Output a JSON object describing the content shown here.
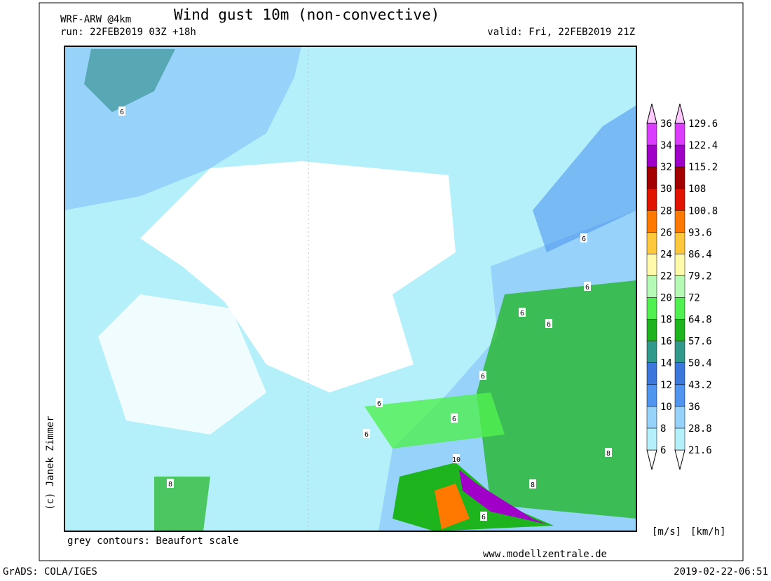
{
  "header": {
    "model": "WRF-ARW @4km",
    "title": "Wind gust 10m (non-convective)",
    "run": "run: 22FEB2019 03Z +18h",
    "valid": "valid: Fri, 22FEB2019 21Z"
  },
  "legend": {
    "ms_labels": [
      "6",
      "8",
      "10",
      "12",
      "14",
      "16",
      "18",
      "20",
      "22",
      "24",
      "26",
      "28",
      "30",
      "32",
      "34",
      "36"
    ],
    "kmh_labels": [
      "21.6",
      "28.8",
      "36",
      "43.2",
      "50.4",
      "57.6",
      "64.8",
      "72",
      "79.2",
      "86.4",
      "93.6",
      "100.8",
      "108",
      "115.2",
      "122.4",
      "129.6"
    ],
    "colors": [
      "#ffffff",
      "#b4f0fa",
      "#96d2fa",
      "#5096f0",
      "#3c78dc",
      "#329a8c",
      "#1eb41e",
      "#50f050",
      "#b4fab4",
      "#fffaaa",
      "#ffc83c",
      "#ff7800",
      "#e11400",
      "#a50000",
      "#a000c8",
      "#dc3cff",
      "#ffc8ff"
    ],
    "unit_ms": "[m/s]",
    "unit_kmh": "[km/h]"
  },
  "contour_labels": [
    "6",
    "6",
    "6",
    "6",
    "6",
    "6",
    "6",
    "6",
    "6",
    "6",
    "8",
    "8",
    "8",
    "10"
  ],
  "footer": {
    "copyright": "(c) Janek Zimmer",
    "contours": "grey contours: Beaufort scale",
    "website": "www.modellzentrale.de",
    "grads": "GrADS: COLA/IGES",
    "timestamp": "2019-02-22-06:51"
  }
}
